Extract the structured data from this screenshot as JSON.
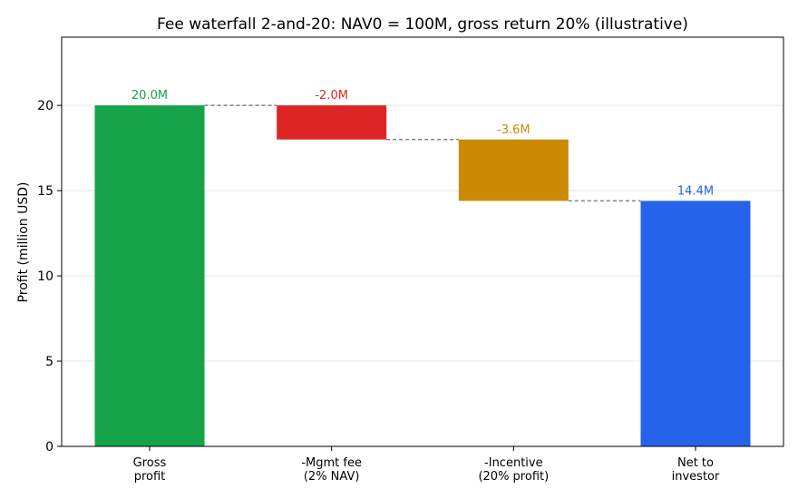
{
  "chart_data": {
    "type": "bar",
    "subtype": "waterfall",
    "title": "Fee waterfall 2-and-20: NAV0 = 100M, gross return 20% (illustrative)",
    "xlabel": "",
    "ylabel": "Profit (million USD)",
    "ylim": [
      0,
      24
    ],
    "yticks": [
      0,
      5,
      10,
      15,
      20
    ],
    "grid": true,
    "categories": [
      [
        "Gross",
        "profit"
      ],
      [
        "-Mgmt fee",
        "(2% NAV)"
      ],
      [
        "-Incentive",
        "(20% profit)"
      ],
      [
        "Net to",
        "investor"
      ]
    ],
    "bars": [
      {
        "start": 0,
        "end": 20.0,
        "label": "20.0M",
        "color": "#16a34a"
      },
      {
        "start": 20.0,
        "end": 18.0,
        "label": "-2.0M",
        "color": "#dc2626"
      },
      {
        "start": 18.0,
        "end": 14.4,
        "label": "-3.6M",
        "color": "#ca8a04"
      },
      {
        "start": 0,
        "end": 14.4,
        "label": "14.4M",
        "color": "#2563eb"
      }
    ],
    "connector_color": "#808080"
  }
}
